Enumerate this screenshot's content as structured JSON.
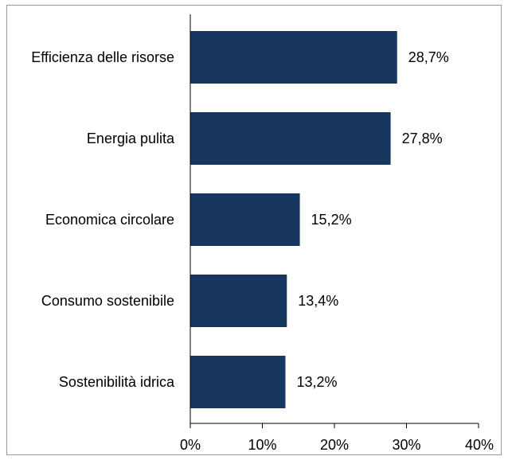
{
  "chart_data": {
    "type": "bar",
    "orientation": "horizontal",
    "title": "",
    "xlabel": "",
    "ylabel": "",
    "categories": [
      "Efficienza delle risorse",
      "Energia pulita",
      "Economica circolare",
      "Consumo sostenibile",
      "Sostenibilità idrica"
    ],
    "values": [
      28.7,
      27.8,
      15.2,
      13.4,
      13.2
    ],
    "value_labels": [
      "28,7%",
      "27,8%",
      "15,2%",
      "13,4%",
      "13,2%"
    ],
    "xlim": [
      0,
      40
    ],
    "xticks": [
      0,
      10,
      20,
      30,
      40
    ],
    "xtick_labels": [
      "0%",
      "10%",
      "20%",
      "30%",
      "40%"
    ],
    "grid": false,
    "legend": "none",
    "bar_color": "#17375e"
  }
}
